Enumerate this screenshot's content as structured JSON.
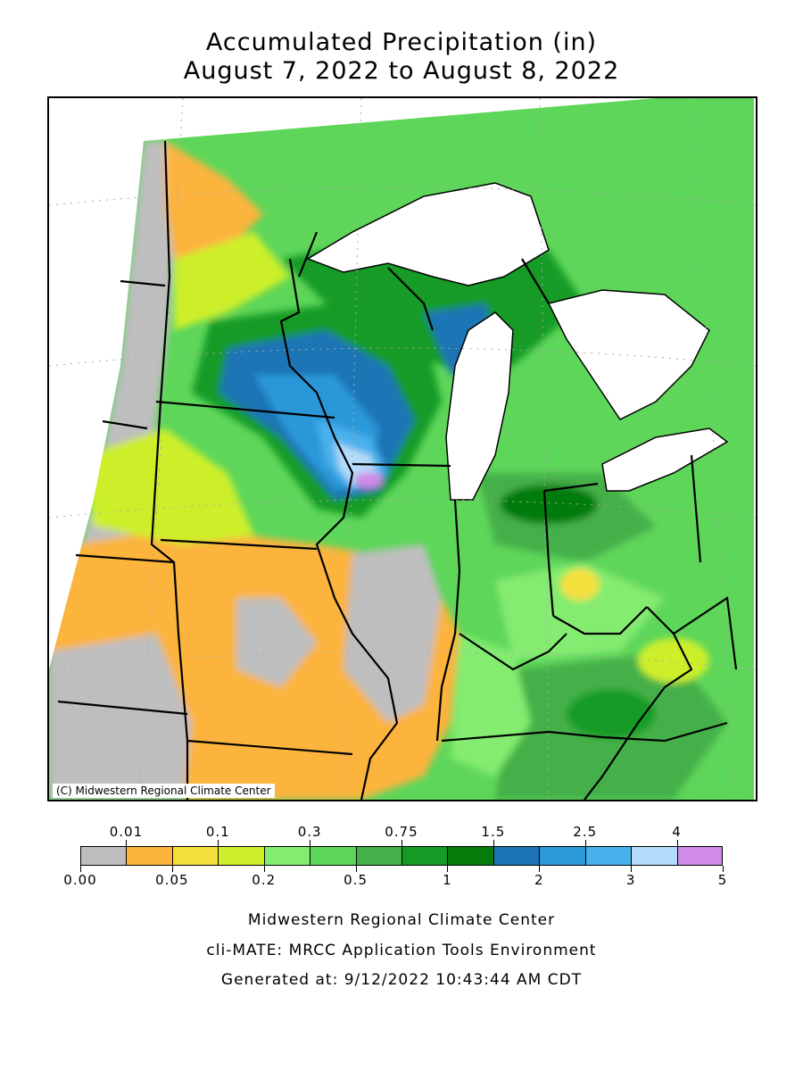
{
  "title": {
    "line1": "Accumulated Precipitation (in)",
    "line2": "August 7, 2022 to August 8, 2022"
  },
  "map": {
    "copyright": "(C) Midwestern Regional Climate Center",
    "colors": {
      "lake": "#ffffff",
      "border": "#000000",
      "grid": "#aaaaaa"
    }
  },
  "legend": {
    "upper_labels": [
      "0.01",
      "0.1",
      "0.3",
      "0.75",
      "1.5",
      "2.5",
      "4"
    ],
    "lower_labels": [
      "0.00",
      "0.05",
      "0.2",
      "0.5",
      "1",
      "2",
      "3",
      "5"
    ],
    "colors": [
      "#bebebe",
      "#fcb43c",
      "#f4e03c",
      "#cdef2b",
      "#84ec70",
      "#5ed65a",
      "#45b04a",
      "#149b26",
      "#057b0a",
      "#1c74b4",
      "#2c98d8",
      "#48b0ec",
      "#b4dcfa",
      "#d08ae8"
    ]
  },
  "footer": {
    "line1": "Midwestern Regional Climate Center",
    "line2": "cli-MATE: MRCC Application Tools Environment",
    "line3": "Generated at: 9/12/2022 10:43:44 AM CDT"
  }
}
